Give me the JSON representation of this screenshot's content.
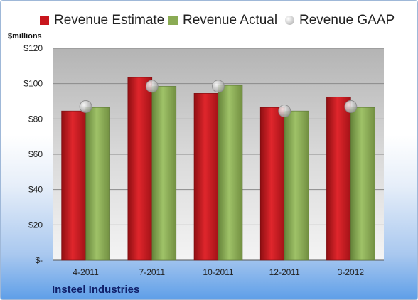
{
  "chart_data": {
    "type": "bar",
    "categories": [
      "4-2011",
      "7-2011",
      "10-2011",
      "12-2011",
      "3-2012"
    ],
    "series": [
      {
        "name": "Revenue Estimate",
        "kind": "bar",
        "color": "#c8161d",
        "values": [
          84.5,
          103.5,
          94.5,
          86.5,
          92.5
        ]
      },
      {
        "name": "Revenue Actual",
        "kind": "bar",
        "color": "#8aab54",
        "values": [
          86.5,
          98.5,
          99.0,
          84.5,
          86.5
        ]
      },
      {
        "name": "Revenue GAAP",
        "kind": "marker",
        "color": "#b0b0b0",
        "values": [
          87.0,
          98.5,
          98.5,
          84.5,
          87.0
        ]
      }
    ],
    "ylabel": "$millions",
    "ylim": [
      0,
      120
    ],
    "yticks": [
      0,
      20,
      40,
      60,
      80,
      100,
      120
    ],
    "ytick_labels": [
      "$-",
      "$20",
      "$40",
      "$60",
      "$80",
      "$100",
      "$120"
    ],
    "grid": true,
    "legend_position": "top"
  },
  "footer": {
    "company": "Insteel Industries"
  }
}
